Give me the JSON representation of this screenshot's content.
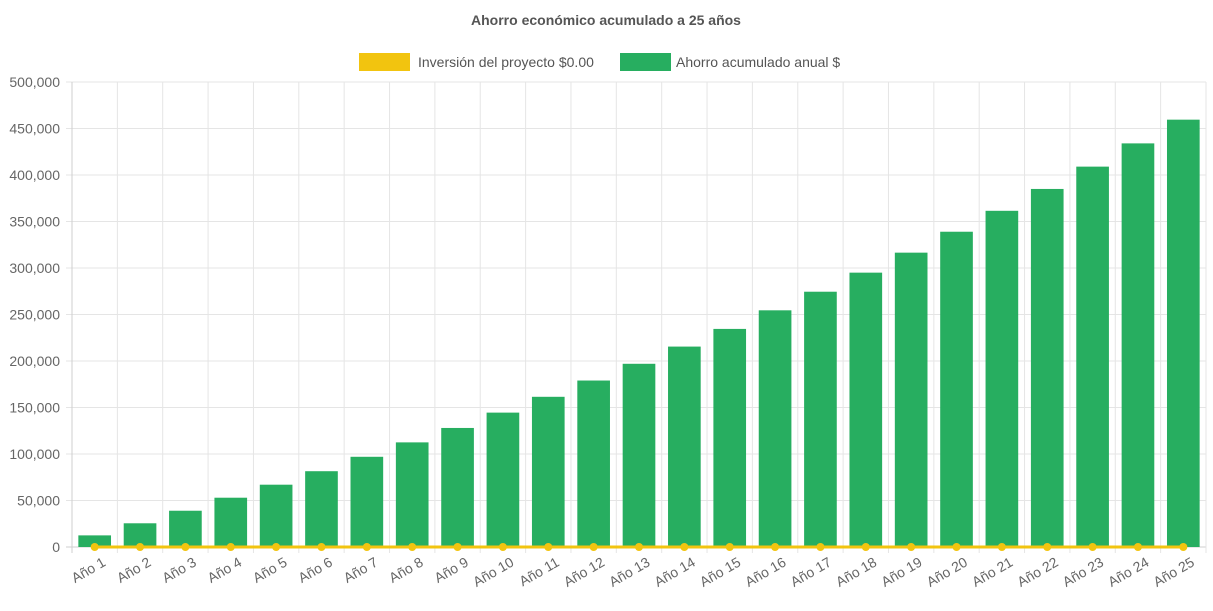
{
  "chart_data": {
    "type": "bar",
    "title": "Ahorro económico acumulado a 25 años",
    "categories": [
      "Año 1",
      "Año 2",
      "Año 3",
      "Año 4",
      "Año 5",
      "Año 6",
      "Año 7",
      "Año 8",
      "Año 9",
      "Año 10",
      "Año 11",
      "Año 12",
      "Año 13",
      "Año 14",
      "Año 15",
      "Año 16",
      "Año 17",
      "Año 18",
      "Año 19",
      "Año 20",
      "Año 21",
      "Año 22",
      "Año 23",
      "Año 24",
      "Año 25"
    ],
    "series": [
      {
        "name": "Inversión del proyecto $0.00",
        "kind": "line",
        "color": "#f2c40f",
        "values": [
          0,
          0,
          0,
          0,
          0,
          0,
          0,
          0,
          0,
          0,
          0,
          0,
          0,
          0,
          0,
          0,
          0,
          0,
          0,
          0,
          0,
          0,
          0,
          0,
          0
        ]
      },
      {
        "name": "Ahorro acumulado anual $",
        "kind": "bar",
        "color": "#27ae60",
        "values": [
          12500,
          25500,
          39000,
          53000,
          67000,
          81500,
          97000,
          112500,
          128000,
          144500,
          161500,
          179000,
          197000,
          215500,
          234500,
          254500,
          274500,
          295000,
          316500,
          339000,
          361500,
          385000,
          409000,
          434000,
          459500
        ]
      }
    ],
    "yticks": [
      "0",
      "50,000",
      "100,000",
      "150,000",
      "200,000",
      "250,000",
      "300,000",
      "350,000",
      "400,000",
      "450,000",
      "500,000"
    ],
    "ylim": [
      0,
      500000
    ],
    "grid": true,
    "legend_position": "top"
  }
}
